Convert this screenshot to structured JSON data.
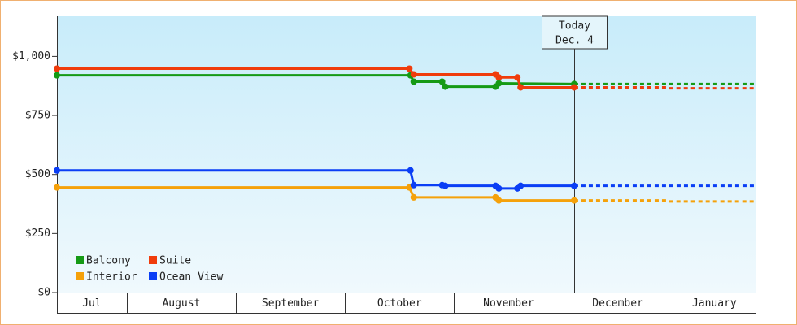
{
  "chart_data": {
    "type": "line",
    "ylim": [
      0,
      1170
    ],
    "yticks": [
      {
        "value": 0,
        "label": "$0"
      },
      {
        "value": 250,
        "label": "$250"
      },
      {
        "value": 500,
        "label": "$500"
      },
      {
        "value": 750,
        "label": "$750"
      },
      {
        "value": 1000,
        "label": "$1,000"
      }
    ],
    "xlim": [
      7.36,
      13.77
    ],
    "xticks": [
      {
        "value": 7,
        "label": "Jul"
      },
      {
        "value": 8,
        "label": "August"
      },
      {
        "value": 9,
        "label": "September"
      },
      {
        "value": 10,
        "label": "October"
      },
      {
        "value": 11,
        "label": "November"
      },
      {
        "value": 12,
        "label": "December"
      },
      {
        "value": 13,
        "label": "January"
      }
    ],
    "today": {
      "x": 12.1,
      "lines": [
        "Today",
        "Dec. 4"
      ]
    },
    "legend": "lower left",
    "series": [
      {
        "name": "Balcony",
        "color": "#159a15",
        "x": [
          7.36,
          10.6,
          10.63,
          10.89,
          10.92,
          11.38,
          11.41,
          12.1,
          13.77
        ],
        "values": [
          920,
          920,
          893,
          893,
          872,
          872,
          886,
          883,
          883
        ]
      },
      {
        "name": "Suite",
        "color": "#f03c0c",
        "x": [
          7.36,
          10.59,
          10.63,
          11.38,
          11.41,
          11.58,
          11.61,
          12.1,
          12.95,
          12.97,
          13.77
        ],
        "values": [
          948,
          948,
          924,
          924,
          911,
          911,
          869,
          869,
          869,
          865,
          865
        ]
      },
      {
        "name": "Interior",
        "color": "#f5a10a",
        "x": [
          7.36,
          10.59,
          10.63,
          11.38,
          11.41,
          12.1,
          12.95,
          12.97,
          13.77
        ],
        "values": [
          445,
          445,
          403,
          403,
          390,
          390,
          390,
          386,
          386
        ]
      },
      {
        "name": "Ocean View",
        "color": "#0a3ef5",
        "x": [
          7.36,
          10.6,
          10.63,
          10.89,
          10.92,
          11.38,
          11.41,
          11.58,
          11.61,
          12.1,
          13.77
        ],
        "values": [
          517,
          517,
          455,
          455,
          452,
          452,
          441,
          441,
          452,
          452,
          452
        ]
      }
    ]
  }
}
